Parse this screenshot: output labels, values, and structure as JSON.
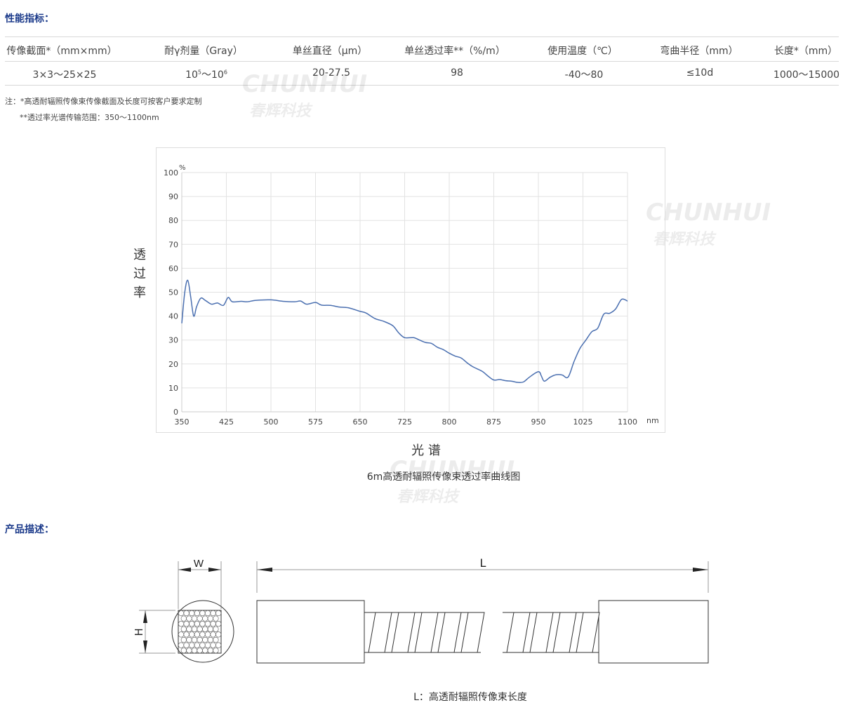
{
  "spec": {
    "title": "性能指标：",
    "headers": [
      "传像截面*（mm×mm）",
      "耐γ剂量（Gray）",
      "单丝直径（μm）",
      "单丝透过率**（%/m）",
      "使用温度（℃）",
      "弯曲半径（mm）",
      "长度*（mm）"
    ],
    "row": {
      "c0": "3×3～25×25",
      "c1_base": "10",
      "c1_exp": "5",
      "c1_sep": "～",
      "c1_base2": "10",
      "c1_exp2": "6",
      "c2": "20-27.5",
      "c3": "98",
      "c4": "-40～80",
      "c5": "≤10d",
      "c6": "1000～15000"
    },
    "note1": "注：*高透耐辐照传像束传像截面及长度可按客户要求定制",
    "note2": "**透过率光谱传输范围：350～1100nm"
  },
  "watermark": {
    "en": "CHUNHUI",
    "cn": "春辉科技"
  },
  "chart_data": {
    "type": "line",
    "title": "",
    "caption": "6m高透耐辐照传像束透过率曲线图",
    "xlabel": "光 谱",
    "ylabel": "透过率",
    "xunit": "nm",
    "yunit": "%",
    "xlim": [
      350,
      1100
    ],
    "ylim": [
      0,
      100
    ],
    "grid": true,
    "color": "#4a6fb0",
    "xticks": [
      350,
      425,
      500,
      575,
      650,
      725,
      800,
      875,
      950,
      1025,
      1100
    ],
    "yticks": [
      0,
      10,
      20,
      30,
      40,
      50,
      60,
      70,
      80,
      90,
      100
    ],
    "x": [
      350,
      355,
      360,
      365,
      370,
      375,
      382,
      390,
      400,
      410,
      420,
      428,
      435,
      450,
      460,
      475,
      500,
      520,
      540,
      550,
      560,
      575,
      585,
      600,
      615,
      630,
      650,
      660,
      675,
      690,
      705,
      715,
      725,
      740,
      750,
      760,
      770,
      780,
      790,
      800,
      810,
      820,
      830,
      840,
      855,
      865,
      875,
      885,
      895,
      905,
      915,
      925,
      935,
      950,
      955,
      960,
      970,
      980,
      990,
      1000,
      1010,
      1020,
      1030,
      1040,
      1050,
      1060,
      1070,
      1080,
      1090,
      1100
    ],
    "y": [
      37,
      50,
      55,
      48,
      40,
      44,
      47.5,
      46.5,
      45,
      45.5,
      44.5,
      47.8,
      46,
      46.2,
      46,
      46.6,
      46.8,
      46.2,
      46,
      46.3,
      45,
      45.7,
      44.6,
      44.5,
      43.8,
      43.5,
      42,
      41.3,
      39,
      37.8,
      36,
      33,
      31,
      31,
      30,
      29,
      28.6,
      27,
      26,
      24.5,
      23.3,
      22.5,
      20.5,
      18.8,
      17,
      15,
      13.3,
      13.5,
      13,
      12.8,
      12.3,
      12.5,
      14.5,
      16.8,
      15,
      12.8,
      14.5,
      15.5,
      15.4,
      14.5,
      21,
      26.5,
      30,
      33.5,
      35,
      40.8,
      41.2,
      43,
      47,
      46.3
    ]
  },
  "product": {
    "title": "产品描述：",
    "w_label": "W",
    "h_label": "H",
    "l_label": "L",
    "caption": "L：高透耐辐照传像束长度"
  }
}
